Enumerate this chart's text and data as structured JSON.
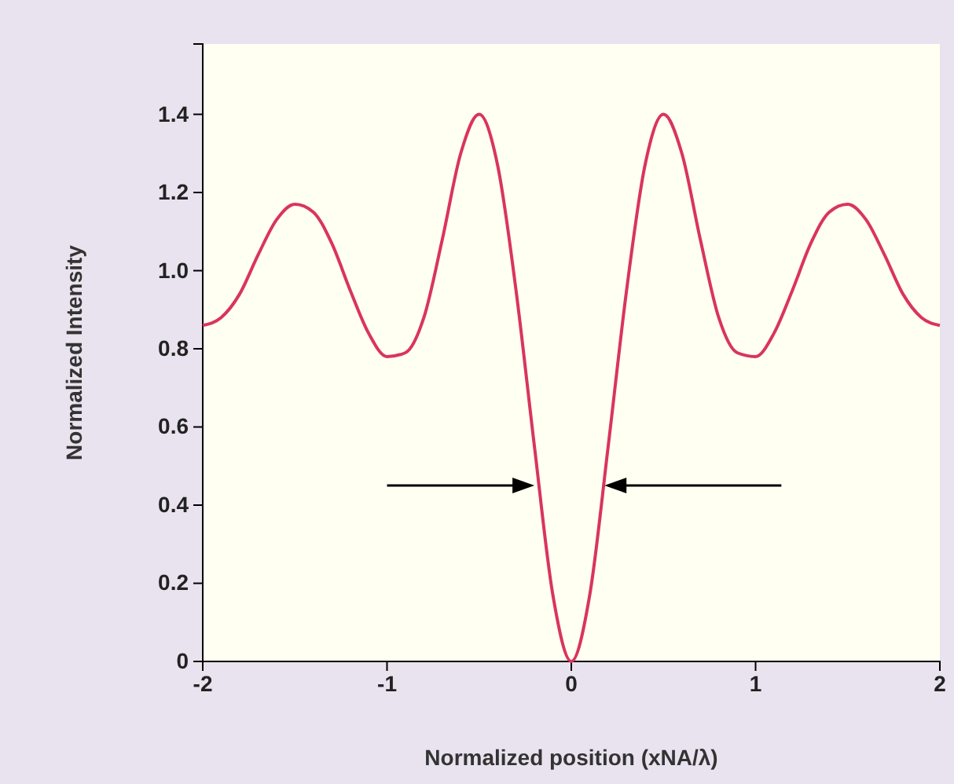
{
  "chart_data": {
    "type": "line",
    "xlabel": "Normalized position (xNA/λ)",
    "ylabel": "Normalized Intensity",
    "x": [
      -2,
      -1.9,
      -1.8,
      -1.7,
      -1.6,
      -1.5,
      -1.4,
      -1.3,
      -1.2,
      -1.1,
      -1,
      -0.9,
      -0.8,
      -0.7,
      -0.6,
      -0.5,
      -0.4,
      -0.3,
      -0.2,
      -0.1,
      0,
      0.1,
      0.2,
      0.3,
      0.4,
      0.5,
      0.6,
      0.7,
      0.8,
      0.9,
      1,
      1.1,
      1.2,
      1.3,
      1.4,
      1.5,
      1.6,
      1.7,
      1.8,
      1.9,
      2
    ],
    "series": [
      {
        "color": "#d9345f",
        "values": [
          0.86,
          0.88,
          0.94,
          1.04,
          1.13,
          1.17,
          1.15,
          1.07,
          0.95,
          0.84,
          0.78,
          0.79,
          0.88,
          1.08,
          1.3,
          1.4,
          1.27,
          0.95,
          0.55,
          0.17,
          0,
          0.17,
          0.55,
          0.95,
          1.27,
          1.4,
          1.3,
          1.08,
          0.88,
          0.79,
          0.78,
          0.84,
          0.95,
          1.07,
          1.15,
          1.17,
          1.13,
          1.04,
          0.94,
          0.88,
          0.86
        ]
      }
    ],
    "xlim": [
      -2,
      2
    ],
    "ylim": [
      0,
      1.58
    ],
    "xticks": [
      -2,
      -1,
      0,
      1,
      2
    ],
    "yticks": [
      0,
      0.2,
      0.4,
      0.6,
      0.8,
      {
        "value": 1,
        "label": "1.0"
      },
      1.2,
      1.4
    ],
    "grid": false,
    "marker": "none",
    "line_style": "solid"
  }
}
